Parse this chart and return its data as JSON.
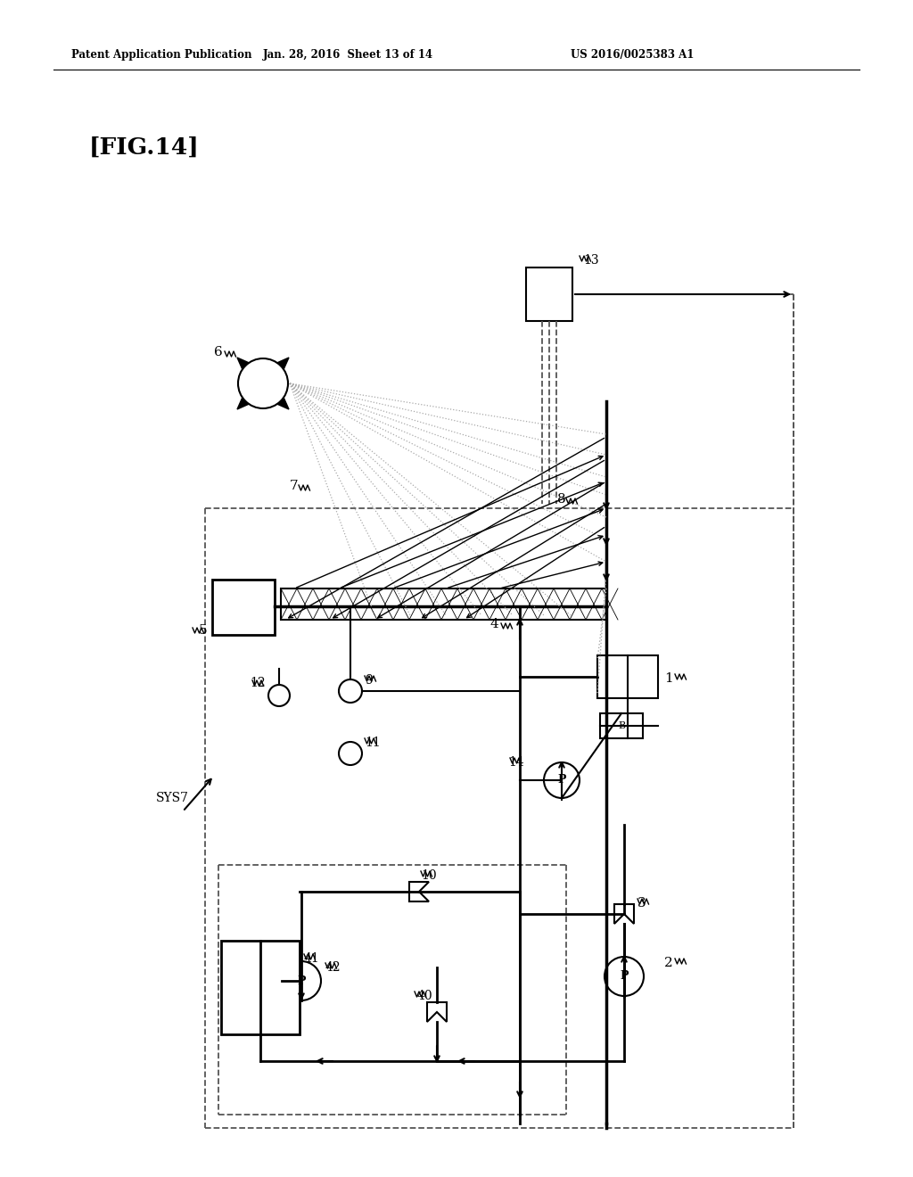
{
  "header_left": "Patent Application Publication",
  "header_mid": "Jan. 28, 2016  Sheet 13 of 14",
  "header_right": "US 2016/0025383 A1",
  "fig_label": "[FIG.14]",
  "sys_label": "SYS7",
  "bg_color": "#ffffff",
  "line_color": "#000000",
  "dashed_color": "#555555",
  "dotted_color": "#aaaaaa"
}
